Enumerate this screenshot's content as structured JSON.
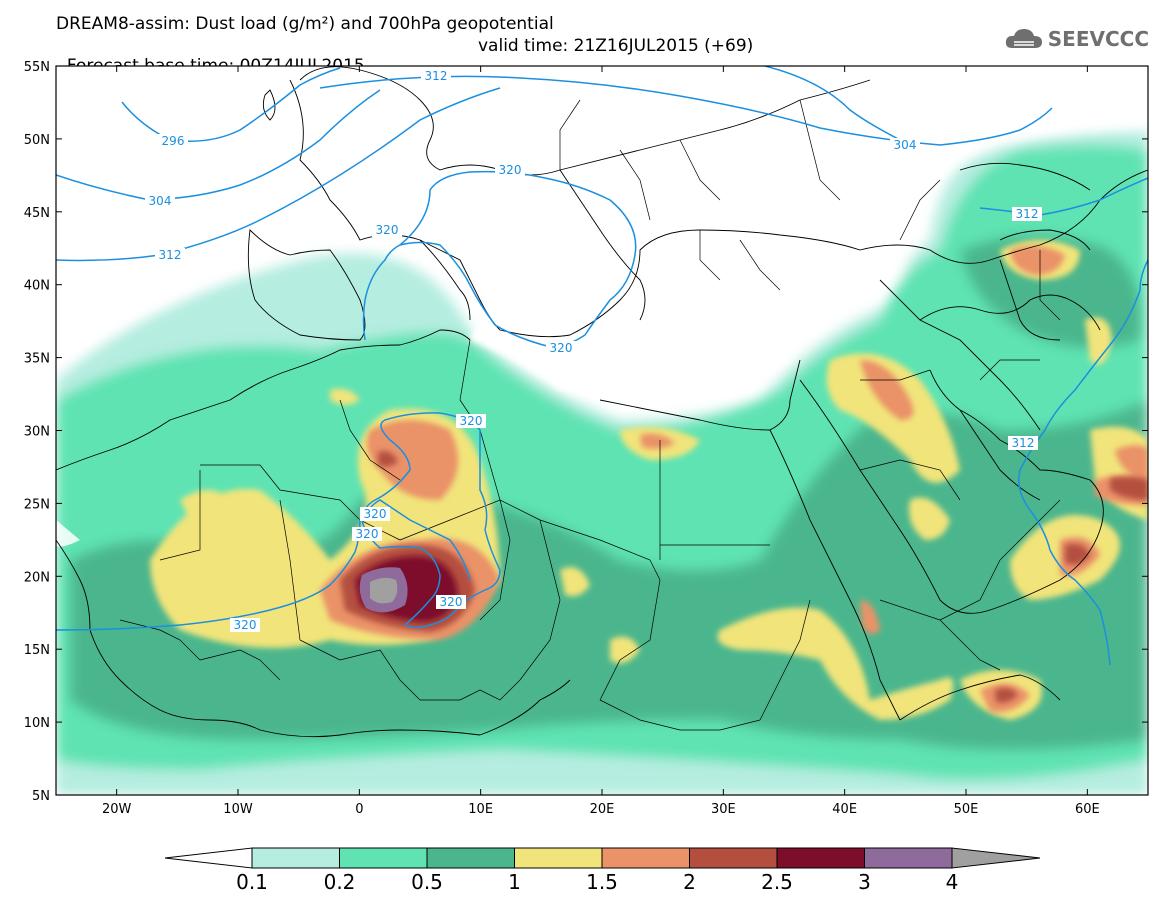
{
  "title": {
    "line1": "DREAM8-assim: Dust load (g/m²) and 700hPa geopotential",
    "base_time": "Forecast base time: 00Z14JUL2015",
    "valid_time": "valid time: 21Z16JUL2015 (+69)"
  },
  "logo": {
    "text": "SEEVCCC",
    "icon": "cloud-icon"
  },
  "axes": {
    "lat_labels": [
      "55N",
      "50N",
      "45N",
      "40N",
      "35N",
      "30N",
      "25N",
      "20N",
      "15N",
      "10N",
      "5N"
    ],
    "lon_labels": [
      "20W",
      "10W",
      "0",
      "10E",
      "20E",
      "30E",
      "40E",
      "50E",
      "60E"
    ],
    "lat_range": [
      5,
      55
    ],
    "lon_range": [
      -25,
      65
    ]
  },
  "contours": {
    "color": "#1b8fe0",
    "labels": [
      "312",
      "296",
      "304",
      "312",
      "320",
      "320",
      "320",
      "320",
      "320",
      "320",
      "320",
      "304",
      "312",
      "312"
    ]
  },
  "colorbar": {
    "ticks": [
      "0.1",
      "0.2",
      "0.5",
      "1",
      "1.5",
      "2",
      "2.5",
      "3",
      "4"
    ],
    "colors": [
      "#b5ede0",
      "#5fe3b3",
      "#4bb68d",
      "#f1e47a",
      "#ea9268",
      "#b44f3f",
      "#7d0e2a",
      "#8f6b9c"
    ],
    "under_color": "#ffffff",
    "over_color": "#a0a0a0"
  }
}
